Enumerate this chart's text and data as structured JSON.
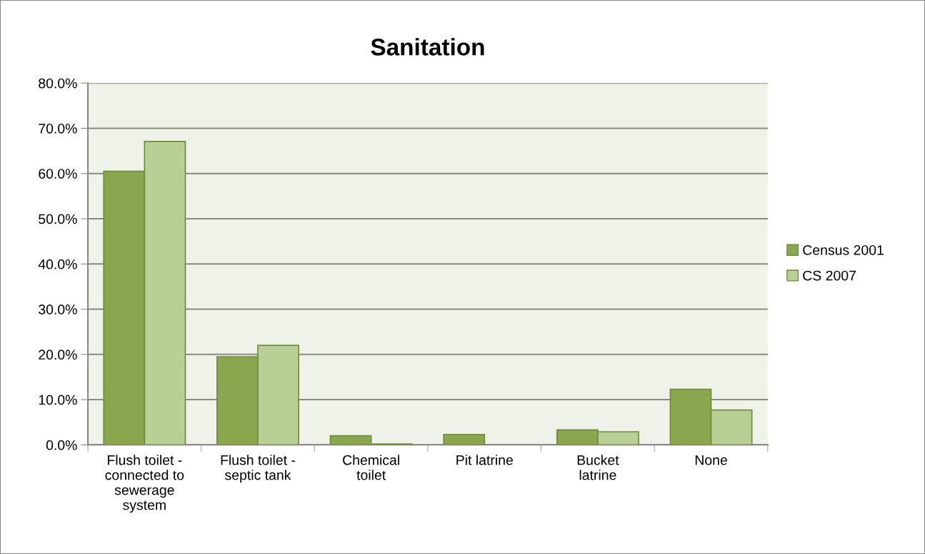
{
  "chart_data": {
    "type": "bar",
    "title": "Sanitation",
    "categories": [
      "Flush toilet -\nconnected to\nsewerage\nsystem",
      "Flush toilet -\nseptic tank",
      "Chemical\ntoilet",
      "Pit latrine",
      "Bucket\nlatrine",
      "None"
    ],
    "series": [
      {
        "name": "Census 2001",
        "color": "#8aa64f",
        "values": [
          60.5,
          19.5,
          2.0,
          2.3,
          3.3,
          12.3
        ]
      },
      {
        "name": "CS 2007",
        "color": "#b9cf96",
        "values": [
          67.1,
          22.0,
          0.2,
          null,
          2.9,
          7.7
        ]
      }
    ],
    "ylim": [
      0,
      80
    ],
    "yticks": [
      {
        "value": 0,
        "label": "0.0%"
      },
      {
        "value": 10,
        "label": "10.0%"
      },
      {
        "value": 20,
        "label": "20.0%"
      },
      {
        "value": 30,
        "label": "30.0%"
      },
      {
        "value": 40,
        "label": "40.0%"
      },
      {
        "value": 50,
        "label": "50.0%"
      },
      {
        "value": 60,
        "label": "60.0%"
      },
      {
        "value": 70,
        "label": "70.0%"
      },
      {
        "value": 80,
        "label": "80.0%"
      }
    ],
    "grid": "y",
    "legend": "right"
  }
}
